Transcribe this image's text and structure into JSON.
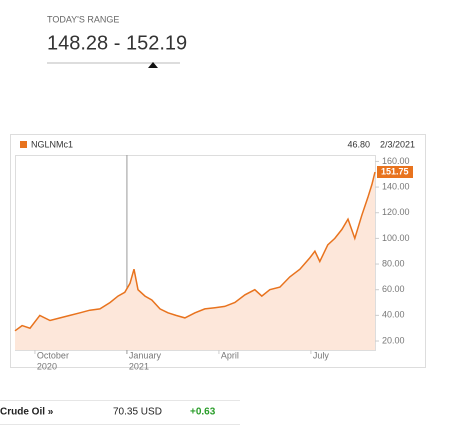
{
  "range": {
    "label": "TODAY'S RANGE",
    "value": "148.28 - 152.19"
  },
  "chart_data": {
    "type": "line",
    "header_value": "46.80",
    "header_date": "2/3/2021",
    "series": [
      {
        "name": "NGLNMc1",
        "color": "#e8731e",
        "x": [
          9.35,
          9.58,
          9.84,
          10.16,
          10.49,
          10.82,
          11.14,
          11.47,
          11.79,
          12.12,
          12.45,
          12.71,
          12.93,
          13.1,
          13.23,
          13.36,
          13.59,
          13.81,
          14.08,
          14.34,
          14.6,
          14.89,
          15.22,
          15.54,
          15.87,
          16.19,
          16.52,
          16.85,
          17.17,
          17.4,
          17.66,
          17.99,
          18.31,
          18.64,
          18.97,
          19.13,
          19.29,
          19.55,
          19.78,
          20.01,
          20.21,
          20.43,
          20.66,
          20.86,
          20.99,
          21.09
        ],
        "values": [
          28,
          32,
          30,
          40,
          36,
          38,
          40,
          42,
          44,
          45,
          50,
          55,
          58,
          65,
          76,
          60,
          55,
          52,
          45,
          42,
          40,
          38,
          42,
          45,
          46,
          47,
          50,
          56,
          60,
          55,
          60,
          62,
          70,
          76,
          85,
          90,
          82,
          95,
          100,
          107,
          115,
          100,
          118,
          132,
          142,
          151.75
        ]
      }
    ],
    "area_color": "#fde7da",
    "xlim": [
      9.35,
      21.09
    ],
    "ylim": [
      13,
      165
    ],
    "xticks": [
      {
        "value": 10,
        "label": "October"
      },
      {
        "value": 13,
        "label": "January"
      },
      {
        "value": 16,
        "label": "April"
      },
      {
        "value": 19,
        "label": "July"
      }
    ],
    "x_years": [
      {
        "value": 10,
        "label": "2020"
      },
      {
        "value": 13,
        "label": "2021"
      }
    ],
    "yticks": [
      {
        "value": 20,
        "label": "20.00"
      },
      {
        "value": 40,
        "label": "40.00"
      },
      {
        "value": 60,
        "label": "60.00"
      },
      {
        "value": 80,
        "label": "80.00"
      },
      {
        "value": 100,
        "label": "100.00"
      },
      {
        "value": 120,
        "label": "120.00"
      },
      {
        "value": 140,
        "label": "140.00"
      },
      {
        "value": 160,
        "label": "160.00"
      }
    ]
  },
  "quote": {
    "name": "Crude Oil »",
    "price": "70.35 USD",
    "change": "+0.63"
  }
}
